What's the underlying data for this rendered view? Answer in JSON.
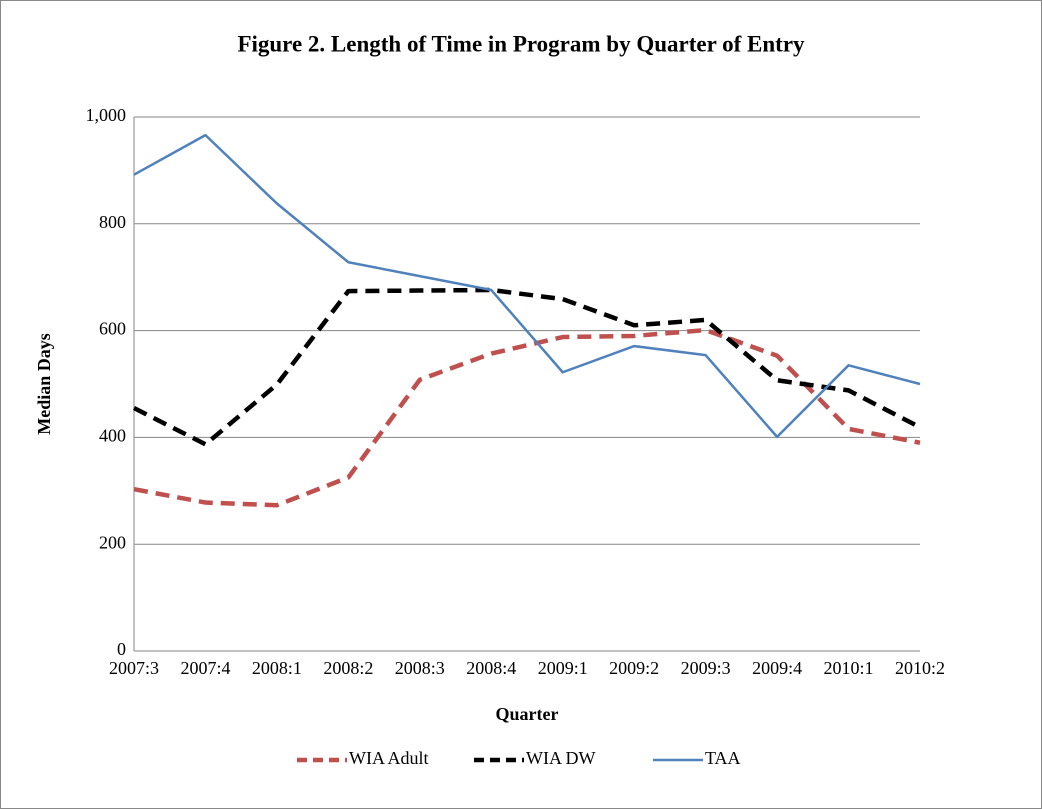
{
  "chart_data": {
    "type": "line",
    "title": "Figure 2. Length of Time in Program by Quarter of Entry",
    "x_label": "Quarter",
    "y_label": "Median Days",
    "categories": [
      "2007:3",
      "2007:4",
      "2008:1",
      "2008:2",
      "2008:3",
      "2008:4",
      "2009:1",
      "2009:2",
      "2009:3",
      "2009:4",
      "2010:1",
      "2010:2"
    ],
    "series": [
      {
        "name": "WIA Adult",
        "color": "#c0504d",
        "style": "dashed",
        "values": [
          303,
          278,
          273,
          325,
          508,
          557,
          588,
          590,
          601,
          553,
          416,
          390
        ]
      },
      {
        "name": "WIA DW",
        "color": "#000000",
        "style": "dashed",
        "values": [
          455,
          387,
          499,
          674,
          675,
          676,
          659,
          610,
          620,
          507,
          488,
          419
        ]
      },
      {
        "name": "TAA",
        "color": "#4f81bd",
        "style": "solid",
        "values": [
          892,
          966,
          838,
          728,
          702,
          676,
          522,
          571,
          554,
          401,
          535,
          500
        ]
      }
    ],
    "ylim": [
      0,
      1000
    ],
    "yticks": [
      0,
      200,
      400,
      600,
      800,
      {
        "value": 1000,
        "label": "1,000"
      }
    ],
    "grid": true,
    "legend": "bottom"
  }
}
